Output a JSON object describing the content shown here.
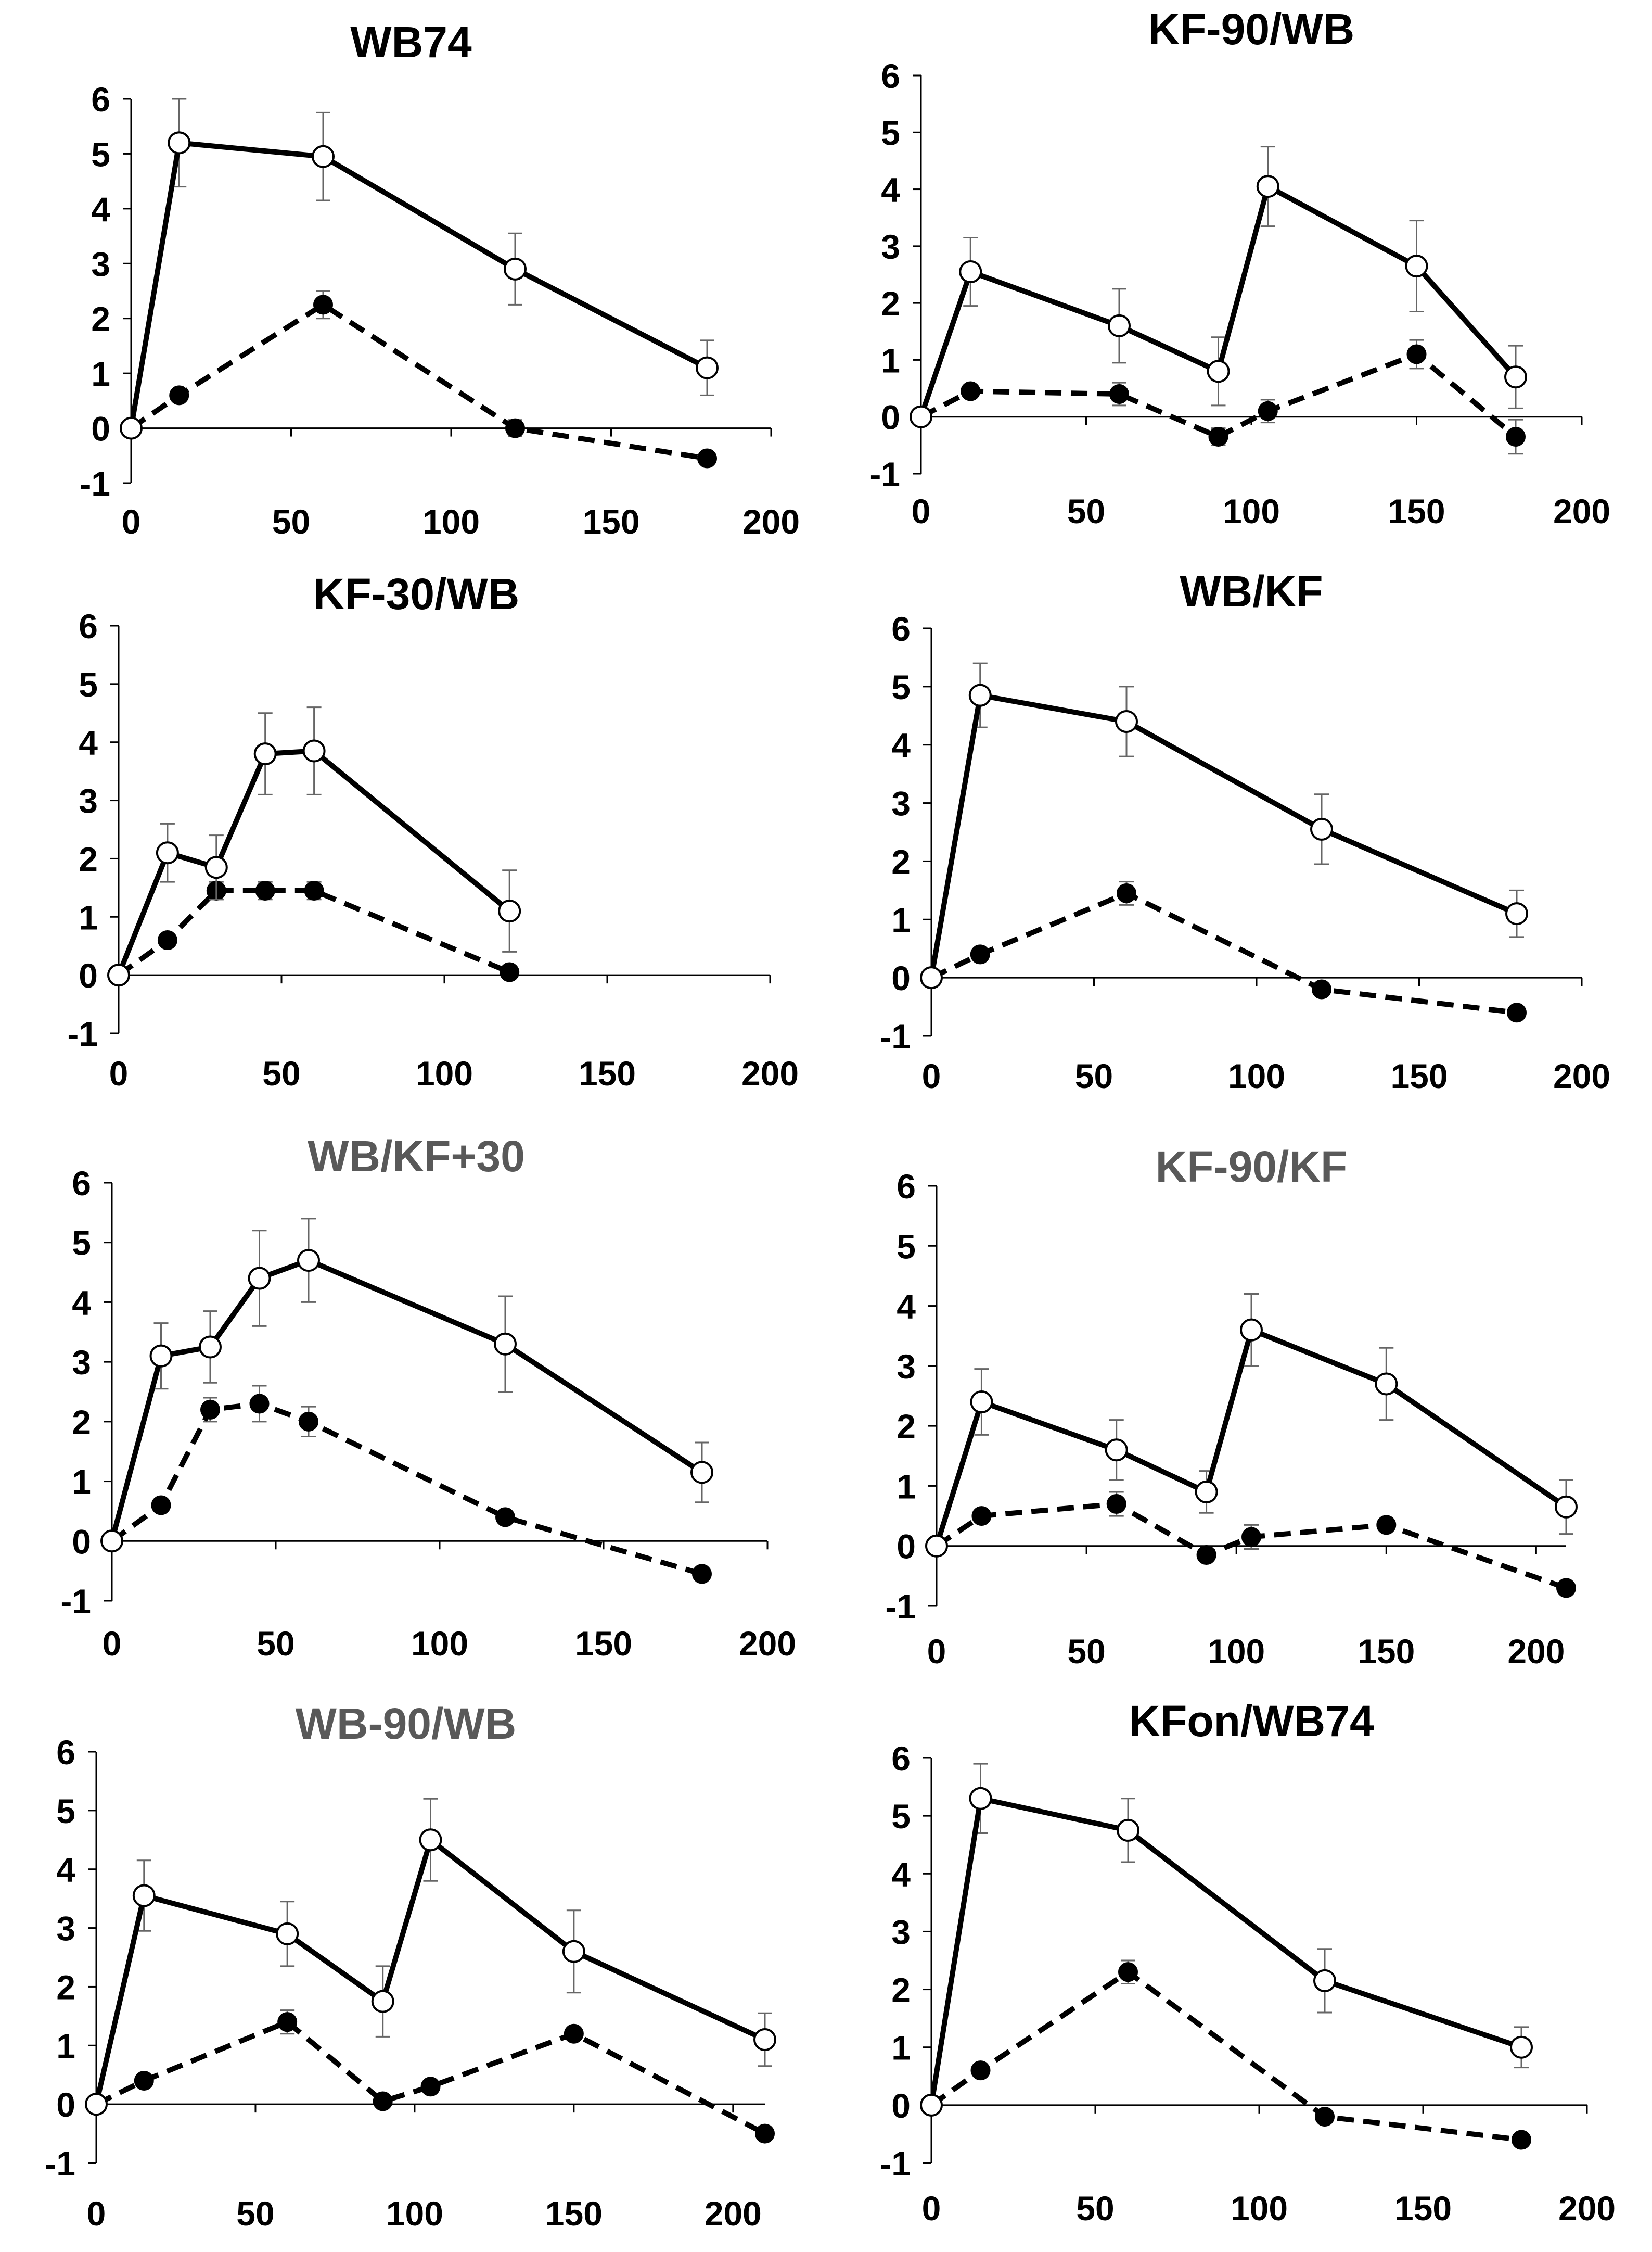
{
  "chart_data": [
    {
      "type": "line",
      "title": "WB74",
      "title_color": "#000000",
      "xlim": [
        0,
        200
      ],
      "ylim": [
        -1,
        6
      ],
      "x_ticks": [
        "0",
        "50",
        "100",
        "150",
        "200"
      ],
      "y_ticks": [
        "-1",
        "0",
        "1",
        "2",
        "3",
        "4",
        "5",
        "6"
      ],
      "series": [
        {
          "name": "open circles (solid line)",
          "style": "solid",
          "marker": "open",
          "x": [
            0,
            15,
            60,
            120,
            180
          ],
          "y": [
            0,
            5.2,
            4.95,
            2.9,
            1.1
          ],
          "err": [
            0,
            0.8,
            0.8,
            0.65,
            0.5
          ]
        },
        {
          "name": "filled circles (dashed line)",
          "style": "dashed",
          "marker": "filled",
          "x": [
            0,
            15,
            60,
            120,
            180
          ],
          "y": [
            0,
            0.6,
            2.25,
            0.0,
            -0.55
          ],
          "err": [
            0,
            0.1,
            0.25,
            0.15,
            0
          ]
        }
      ]
    },
    {
      "type": "line",
      "title": "KF-90/WB",
      "title_color": "#000000",
      "xlim": [
        0,
        200
      ],
      "ylim": [
        -1,
        6
      ],
      "x_ticks": [
        "0",
        "50",
        "100",
        "150",
        "200"
      ],
      "y_ticks": [
        "-1",
        "0",
        "1",
        "2",
        "3",
        "4",
        "5",
        "6"
      ],
      "series": [
        {
          "name": "open circles (solid line)",
          "style": "solid",
          "marker": "open",
          "x": [
            0,
            15,
            60,
            90,
            105,
            150,
            180
          ],
          "y": [
            0,
            2.55,
            1.6,
            0.8,
            4.05,
            2.65,
            0.7
          ],
          "err": [
            0,
            0.6,
            0.65,
            0.6,
            0.7,
            0.8,
            0.55
          ]
        },
        {
          "name": "filled circles (dashed line)",
          "style": "dashed",
          "marker": "filled",
          "x": [
            0,
            15,
            60,
            90,
            105,
            150,
            180
          ],
          "y": [
            0,
            0.45,
            0.4,
            -0.35,
            0.1,
            1.1,
            -0.35
          ],
          "err": [
            0,
            0.05,
            0.2,
            0.15,
            0.2,
            0.25,
            0.3
          ]
        }
      ]
    },
    {
      "type": "line",
      "title": "KF-30/WB",
      "title_color": "#000000",
      "xlim": [
        0,
        200
      ],
      "ylim": [
        -1,
        6
      ],
      "x_ticks": [
        "0",
        "50",
        "100",
        "150",
        "200"
      ],
      "y_ticks": [
        "-1",
        "0",
        "1",
        "2",
        "3",
        "4",
        "5",
        "6"
      ],
      "series": [
        {
          "name": "open circles (solid line)",
          "style": "solid",
          "marker": "open",
          "x": [
            0,
            15,
            30,
            45,
            60,
            120
          ],
          "y": [
            0,
            2.1,
            1.85,
            3.8,
            3.85,
            1.1
          ],
          "err": [
            0,
            0.5,
            0.55,
            0.7,
            0.75,
            0.7
          ]
        },
        {
          "name": "filled circles (dashed line)",
          "style": "dashed",
          "marker": "filled",
          "x": [
            0,
            15,
            30,
            45,
            60,
            120
          ],
          "y": [
            0,
            0.6,
            1.45,
            1.45,
            1.45,
            0.05
          ],
          "err": [
            0,
            0.05,
            0.15,
            0.15,
            0.15,
            0.1
          ]
        }
      ]
    },
    {
      "type": "line",
      "title": "WB/KF",
      "title_color": "#000000",
      "xlim": [
        0,
        200
      ],
      "ylim": [
        -1,
        6
      ],
      "x_ticks": [
        "0",
        "50",
        "100",
        "150",
        "200"
      ],
      "y_ticks": [
        "-1",
        "0",
        "1",
        "2",
        "3",
        "4",
        "5",
        "6"
      ],
      "series": [
        {
          "name": "open circles (solid line)",
          "style": "solid",
          "marker": "open",
          "x": [
            0,
            15,
            60,
            120,
            180
          ],
          "y": [
            0,
            4.85,
            4.4,
            2.55,
            1.1
          ],
          "err": [
            0,
            0.55,
            0.6,
            0.6,
            0.4
          ]
        },
        {
          "name": "filled circles (dashed line)",
          "style": "dashed",
          "marker": "filled",
          "x": [
            0,
            15,
            60,
            120,
            180
          ],
          "y": [
            0,
            0.4,
            1.45,
            -0.2,
            -0.6
          ],
          "err": [
            0,
            0.05,
            0.2,
            0.05,
            0
          ]
        }
      ]
    },
    {
      "type": "line",
      "title": "WB/KF+30",
      "title_color": "#595959",
      "xlim": [
        0,
        200
      ],
      "ylim": [
        -1,
        6
      ],
      "x_ticks": [
        "0",
        "50",
        "100",
        "150",
        "200"
      ],
      "y_ticks": [
        "-1",
        "0",
        "1",
        "2",
        "3",
        "4",
        "5",
        "6"
      ],
      "series": [
        {
          "name": "open circles (solid line)",
          "style": "solid",
          "marker": "open",
          "x": [
            0,
            15,
            30,
            45,
            60,
            120,
            180
          ],
          "y": [
            0,
            3.1,
            3.25,
            4.4,
            4.7,
            3.3,
            1.15
          ],
          "err": [
            0,
            0.55,
            0.6,
            0.8,
            0.7,
            0.8,
            0.5
          ]
        },
        {
          "name": "filled circles (dashed line)",
          "style": "dashed",
          "marker": "filled",
          "x": [
            0,
            15,
            30,
            45,
            60,
            120,
            180
          ],
          "y": [
            0,
            0.6,
            2.2,
            2.3,
            2.0,
            0.4,
            -0.55
          ],
          "err": [
            0,
            0.05,
            0.2,
            0.3,
            0.25,
            0.05,
            0
          ]
        }
      ]
    },
    {
      "type": "line",
      "title": "KF-90/KF",
      "title_color": "#595959",
      "xlim": [
        0,
        210
      ],
      "ylim": [
        -1,
        6
      ],
      "x_ticks": [
        "0",
        "50",
        "100",
        "150",
        "200"
      ],
      "y_ticks": [
        "-1",
        "0",
        "1",
        "2",
        "3",
        "4",
        "5",
        "6"
      ],
      "series": [
        {
          "name": "open circles (solid line)",
          "style": "solid",
          "marker": "open",
          "x": [
            0,
            15,
            60,
            90,
            105,
            150,
            210
          ],
          "y": [
            0,
            2.4,
            1.6,
            0.9,
            3.6,
            2.7,
            0.65
          ],
          "err": [
            0,
            0.55,
            0.5,
            0.35,
            0.6,
            0.6,
            0.45
          ]
        },
        {
          "name": "filled circles (dashed line)",
          "style": "dashed",
          "marker": "filled",
          "x": [
            0,
            15,
            60,
            90,
            105,
            150,
            210
          ],
          "y": [
            0,
            0.5,
            0.7,
            -0.15,
            0.15,
            0.35,
            -0.7
          ],
          "err": [
            0,
            0.1,
            0.2,
            0.1,
            0.2,
            0.1,
            0
          ]
        }
      ]
    },
    {
      "type": "line",
      "title": "WB-90/WB",
      "title_color": "#595959",
      "xlim": [
        0,
        210
      ],
      "ylim": [
        -1,
        6
      ],
      "x_ticks": [
        "0",
        "50",
        "100",
        "150",
        "200"
      ],
      "y_ticks": [
        "-1",
        "0",
        "1",
        "2",
        "3",
        "4",
        "5",
        "6"
      ],
      "series": [
        {
          "name": "open circles (solid line)",
          "style": "solid",
          "marker": "open",
          "x": [
            0,
            15,
            60,
            90,
            105,
            150,
            210
          ],
          "y": [
            0,
            3.55,
            2.9,
            1.75,
            4.5,
            2.6,
            1.1
          ],
          "err": [
            0,
            0.6,
            0.55,
            0.6,
            0.7,
            0.7,
            0.45
          ]
        },
        {
          "name": "filled circles (dashed line)",
          "style": "dashed",
          "marker": "filled",
          "x": [
            0,
            15,
            60,
            90,
            105,
            150,
            210
          ],
          "y": [
            0,
            0.4,
            1.4,
            0.05,
            0.3,
            1.2,
            -0.5
          ],
          "err": [
            0,
            0.05,
            0.2,
            0.1,
            0.05,
            0.1,
            0
          ]
        }
      ]
    },
    {
      "type": "line",
      "title": "KFon/WB74",
      "title_color": "#000000",
      "xlim": [
        0,
        200
      ],
      "ylim": [
        -1,
        6
      ],
      "x_ticks": [
        "0",
        "50",
        "100",
        "150",
        "200"
      ],
      "y_ticks": [
        "-1",
        "0",
        "1",
        "2",
        "3",
        "4",
        "5",
        "6"
      ],
      "series": [
        {
          "name": "open circles (solid line)",
          "style": "solid",
          "marker": "open",
          "x": [
            0,
            15,
            60,
            120,
            180
          ],
          "y": [
            0,
            5.3,
            4.75,
            2.15,
            1.0
          ],
          "err": [
            0,
            0.6,
            0.55,
            0.55,
            0.35
          ]
        },
        {
          "name": "filled circles (dashed line)",
          "style": "dashed",
          "marker": "filled",
          "x": [
            0,
            15,
            60,
            120,
            180
          ],
          "y": [
            0,
            0.6,
            2.3,
            -0.2,
            -0.6
          ],
          "err": [
            0,
            0.05,
            0.2,
            0.05,
            0
          ]
        }
      ]
    }
  ]
}
